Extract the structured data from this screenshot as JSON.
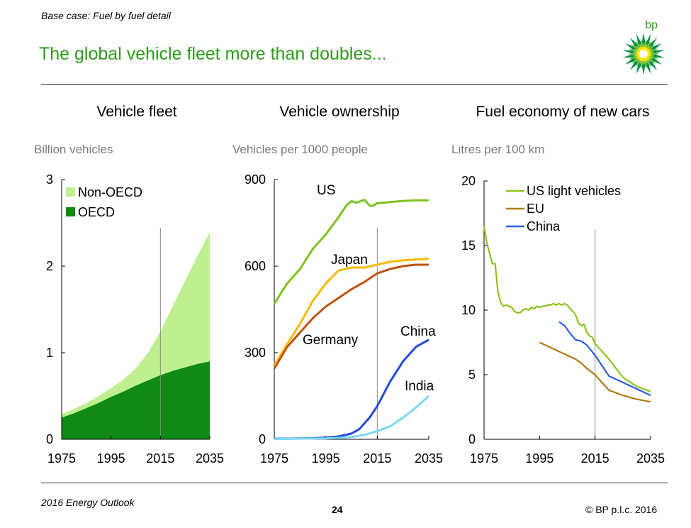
{
  "header": {
    "subtitle": "Base case: Fuel by fuel detail",
    "title": "The global vehicle fleet more than doubles...",
    "logo_text": "bp"
  },
  "footer": {
    "left": "2016 Energy Outlook",
    "page_number": "24",
    "copyright": "© BP p.l.c. 2016"
  },
  "colors": {
    "title_green": "#2e9a1c",
    "non_oecd": "#bff08f",
    "oecd": "#0f8a14",
    "us": "#7cc21f",
    "japan": "#f6b900",
    "germany": "#c0520f",
    "china": "#2349d8",
    "india": "#7cd8f0",
    "us_light_vehicles": "#8cc21d",
    "eu": "#b07a10",
    "china_fuel": "#2a60e8"
  },
  "chart_data": [
    {
      "type": "area",
      "title": "Vehicle fleet",
      "ylabel": "Billion vehicles",
      "xlim": [
        1975,
        2035
      ],
      "ylim": [
        0,
        3
      ],
      "yticks": [
        "0",
        "1",
        "2",
        "3"
      ],
      "xticks": [
        "1975",
        "1995",
        "2015",
        "2035"
      ],
      "marker_year": 2015,
      "legend_position": "top-left",
      "x": [
        1975,
        1980,
        1985,
        1990,
        1995,
        2000,
        2005,
        2010,
        2015,
        2020,
        2025,
        2030,
        2035
      ],
      "series": [
        {
          "name": "OECD",
          "values": [
            0.25,
            0.3,
            0.36,
            0.42,
            0.49,
            0.55,
            0.62,
            0.68,
            0.74,
            0.79,
            0.83,
            0.87,
            0.9
          ]
        },
        {
          "name": "Non-OECD",
          "values": [
            0.04,
            0.05,
            0.06,
            0.08,
            0.1,
            0.14,
            0.2,
            0.32,
            0.5,
            0.75,
            1.0,
            1.25,
            1.49
          ]
        }
      ]
    },
    {
      "type": "line",
      "title": "Vehicle ownership",
      "ylabel": "Vehicles per 1000 people",
      "xlim": [
        1975,
        2035
      ],
      "ylim": [
        0,
        900
      ],
      "yticks": [
        "0",
        "300",
        "600",
        "900"
      ],
      "xticks": [
        "1975",
        "1995",
        "2015",
        "2035"
      ],
      "marker_year": 2015,
      "series": [
        {
          "name": "US",
          "x": [
            1975,
            1980,
            1985,
            1990,
            1995,
            2000,
            2003,
            2005,
            2007,
            2010,
            2012,
            2013,
            2015,
            2020,
            2025,
            2030,
            2035
          ],
          "values": [
            470,
            540,
            590,
            660,
            710,
            770,
            810,
            825,
            820,
            830,
            810,
            808,
            818,
            822,
            826,
            828,
            828
          ]
        },
        {
          "name": "Japan",
          "x": [
            1975,
            1980,
            1985,
            1990,
            1995,
            2000,
            2005,
            2010,
            2015,
            2020,
            2025,
            2030,
            2035
          ],
          "values": [
            255,
            330,
            400,
            480,
            540,
            585,
            595,
            595,
            605,
            615,
            620,
            623,
            625
          ]
        },
        {
          "name": "Germany",
          "x": [
            1975,
            1980,
            1985,
            1990,
            1995,
            2000,
            2005,
            2010,
            2015,
            2020,
            2025,
            2030,
            2035
          ],
          "values": [
            245,
            320,
            370,
            420,
            460,
            490,
            520,
            545,
            575,
            590,
            600,
            605,
            605
          ]
        },
        {
          "name": "China",
          "x": [
            1975,
            1980,
            1985,
            1990,
            1995,
            2000,
            2005,
            2008,
            2010,
            2012,
            2015,
            2020,
            2025,
            2030,
            2035
          ],
          "values": [
            2,
            2,
            3,
            4,
            6,
            10,
            20,
            35,
            55,
            75,
            115,
            200,
            270,
            320,
            345
          ]
        },
        {
          "name": "India",
          "x": [
            1975,
            1985,
            1995,
            2000,
            2005,
            2010,
            2015,
            2020,
            2025,
            2030,
            2035
          ],
          "values": [
            1,
            2,
            3,
            5,
            8,
            15,
            28,
            45,
            75,
            110,
            150
          ]
        }
      ]
    },
    {
      "type": "line",
      "title": "Fuel economy of new cars",
      "ylabel": "Litres per 100 km",
      "xlim": [
        1975,
        2035
      ],
      "ylim": [
        0,
        20
      ],
      "yticks": [
        "0",
        "5",
        "10",
        "15",
        "20"
      ],
      "xticks": [
        "1975",
        "1995",
        "2015",
        "2035"
      ],
      "marker_year": 2015,
      "legend_position": "top-left",
      "series": [
        {
          "name": "US light vehicles",
          "x": [
            1975,
            1976,
            1977,
            1978,
            1979,
            1980,
            1981,
            1982,
            1983,
            1984,
            1985,
            1986,
            1987,
            1988,
            1989,
            1990,
            1991,
            1992,
            1993,
            1994,
            1995,
            1996,
            1997,
            1998,
            1999,
            2000,
            2001,
            2002,
            2003,
            2004,
            2005,
            2006,
            2007,
            2008,
            2009,
            2010,
            2011,
            2012,
            2013,
            2014,
            2015,
            2020,
            2025,
            2030,
            2035
          ],
          "values": [
            16.5,
            15.2,
            14.4,
            13.6,
            13.6,
            11.4,
            10.6,
            10.3,
            10.4,
            10.3,
            10.2,
            9.9,
            9.8,
            9.8,
            10.0,
            10.1,
            10.0,
            10.2,
            10.1,
            10.3,
            10.2,
            10.3,
            10.3,
            10.4,
            10.4,
            10.5,
            10.4,
            10.5,
            10.4,
            10.5,
            10.4,
            10.1,
            9.9,
            9.6,
            9.0,
            8.8,
            8.9,
            8.3,
            8.0,
            7.9,
            7.4,
            6.2,
            4.8,
            4.1,
            3.7
          ]
        },
        {
          "name": "EU",
          "x": [
            1995,
            2000,
            2005,
            2008,
            2010,
            2012,
            2015,
            2020,
            2025,
            2030,
            2035
          ],
          "values": [
            7.5,
            7.0,
            6.5,
            6.2,
            5.9,
            5.5,
            5.0,
            3.8,
            3.4,
            3.1,
            2.9
          ]
        },
        {
          "name": "China",
          "x": [
            2002,
            2004,
            2006,
            2008,
            2010,
            2012,
            2015,
            2020,
            2025,
            2030,
            2035
          ],
          "values": [
            9.1,
            8.8,
            8.2,
            7.7,
            7.6,
            7.3,
            6.5,
            4.9,
            4.4,
            3.9,
            3.4
          ]
        }
      ]
    }
  ]
}
